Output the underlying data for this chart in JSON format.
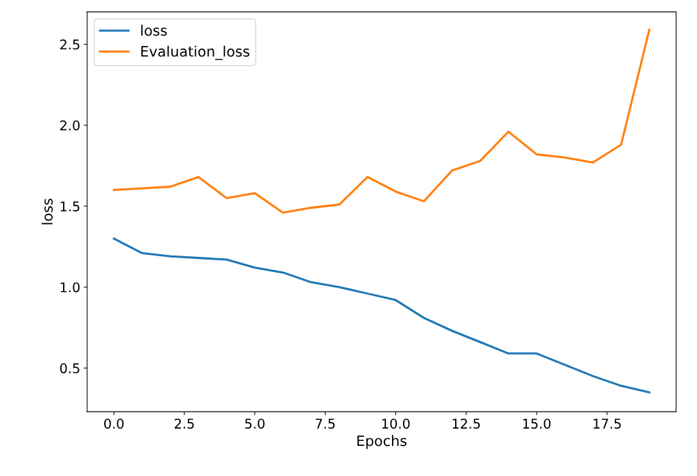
{
  "chart_data": {
    "type": "line",
    "xlabel": "Epochs",
    "ylabel": "loss",
    "x": [
      0,
      1,
      2,
      3,
      4,
      5,
      6,
      7,
      8,
      9,
      10,
      11,
      12,
      13,
      14,
      15,
      16,
      17,
      18,
      19
    ],
    "series": [
      {
        "name": "loss",
        "color": "#1f77b4",
        "values": [
          1.3,
          1.21,
          1.19,
          1.18,
          1.17,
          1.12,
          1.09,
          1.03,
          1.0,
          0.96,
          0.92,
          0.81,
          0.73,
          0.66,
          0.59,
          0.59,
          0.52,
          0.45,
          0.39,
          0.35
        ]
      },
      {
        "name": "Evaluation_loss",
        "color": "#ff7f0e",
        "values": [
          1.6,
          1.61,
          1.62,
          1.68,
          1.55,
          1.58,
          1.46,
          1.49,
          1.51,
          1.68,
          1.59,
          1.53,
          1.72,
          1.78,
          1.96,
          1.82,
          1.8,
          1.77,
          1.88,
          2.59
        ]
      }
    ],
    "xlim": [
      -0.95,
      19.95
    ],
    "ylim": [
      0.23,
      2.7
    ],
    "xticks": [
      {
        "value": 0,
        "label": "0.0"
      },
      {
        "value": 2.5,
        "label": "2.5"
      },
      {
        "value": 5,
        "label": "5.0"
      },
      {
        "value": 7.5,
        "label": "7.5"
      },
      {
        "value": 10,
        "label": "10.0"
      },
      {
        "value": 12.5,
        "label": "12.5"
      },
      {
        "value": 15,
        "label": "15.0"
      },
      {
        "value": 17.5,
        "label": "17.5"
      }
    ],
    "yticks": [
      0.5,
      {
        "value": 1,
        "label": "1.0"
      },
      1.5,
      {
        "value": 2,
        "label": "2.0"
      },
      2.5
    ],
    "legend": "top left",
    "grid": false,
    "marker": "none",
    "line_style": "solid"
  }
}
